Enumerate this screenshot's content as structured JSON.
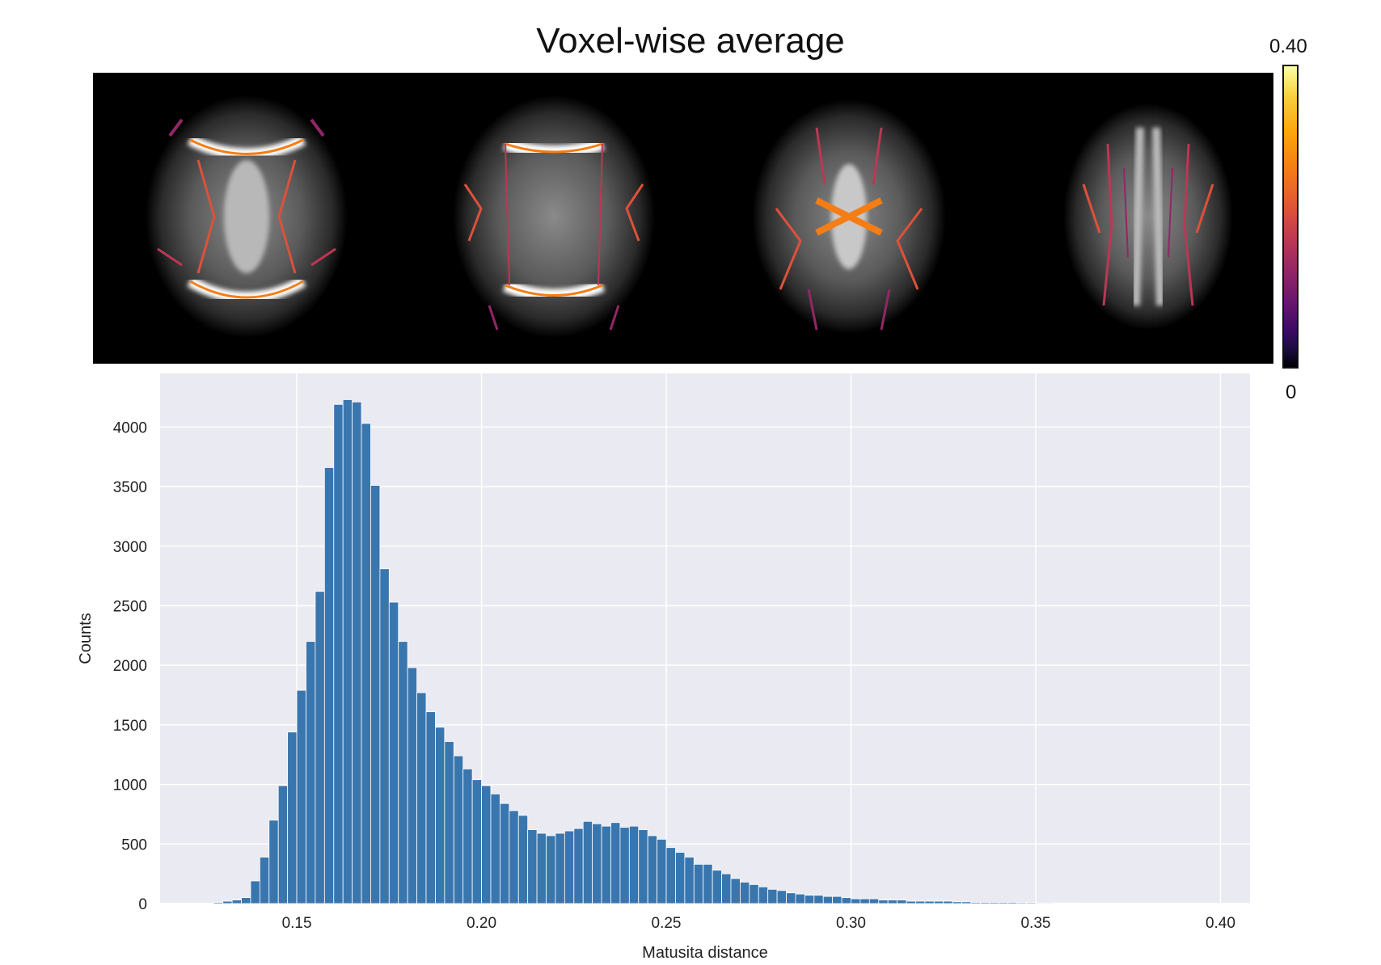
{
  "title": "Voxel-wise average",
  "colorbar": {
    "max_label": "0.40",
    "min_label": "0",
    "colormap": "inferno"
  },
  "brain_slices": {
    "count": 4,
    "background": "#000000"
  },
  "chart_data": {
    "type": "bar",
    "xlabel": "Matusita distance",
    "ylabel": "Counts",
    "xlim": [
      0.113,
      0.408
    ],
    "ylim": [
      0,
      4450
    ],
    "xticks": [
      0.15,
      0.2,
      0.25,
      0.3,
      0.35,
      0.4
    ],
    "xtick_labels": [
      "0.15",
      "0.20",
      "0.25",
      "0.30",
      "0.35",
      "0.40"
    ],
    "yticks": [
      0,
      500,
      1000,
      1500,
      2000,
      2500,
      3000,
      3500,
      4000
    ],
    "ytick_labels": [
      "0",
      "500",
      "1000",
      "1500",
      "2000",
      "2500",
      "3000",
      "3500",
      "4000"
    ],
    "grid": true,
    "background": "#eaeaf2",
    "bar_color": "#3a76ae",
    "bin_start": 0.1275,
    "bin_width": 0.0025,
    "values": [
      10,
      20,
      30,
      50,
      190,
      390,
      700,
      990,
      1440,
      1790,
      2200,
      2620,
      3660,
      4190,
      4230,
      4210,
      4030,
      3510,
      2810,
      2530,
      2200,
      1980,
      1770,
      1610,
      1480,
      1360,
      1240,
      1130,
      1040,
      990,
      920,
      840,
      780,
      740,
      620,
      590,
      570,
      590,
      610,
      630,
      690,
      670,
      650,
      680,
      640,
      650,
      620,
      570,
      540,
      470,
      430,
      390,
      330,
      330,
      280,
      250,
      210,
      180,
      160,
      140,
      120,
      110,
      90,
      80,
      70,
      70,
      60,
      60,
      50,
      40,
      40,
      40,
      30,
      30,
      30,
      20,
      20,
      20,
      20,
      20,
      15,
      15,
      10,
      10,
      10,
      10,
      10,
      8,
      8,
      6,
      6,
      5,
      5,
      5,
      4,
      4,
      3,
      3,
      2,
      2,
      2,
      2,
      1,
      1,
      1,
      1
    ]
  }
}
